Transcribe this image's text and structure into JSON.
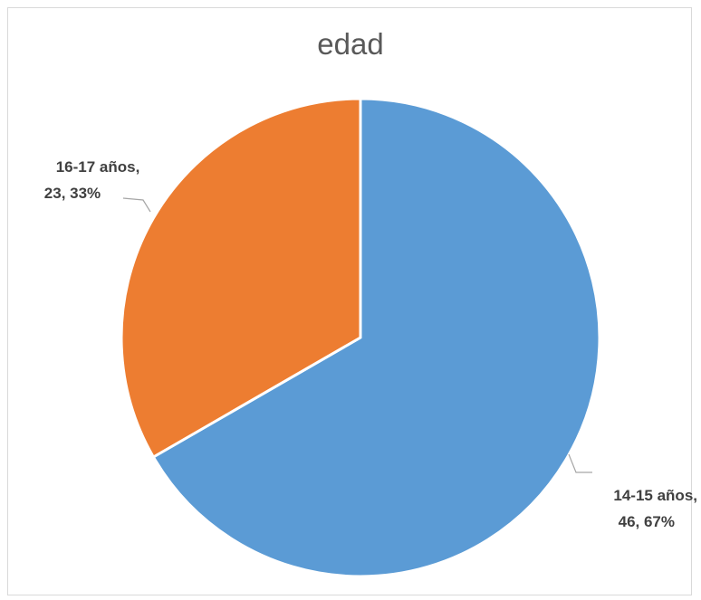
{
  "chart_data": {
    "type": "pie",
    "title": "edad",
    "slices": [
      {
        "label": "14-15 años",
        "value": 46,
        "percent": "67%",
        "label_line1": "14-15 años,",
        "label_line2": "46, 67%",
        "color": "#5B9BD5"
      },
      {
        "label": "16-17 años",
        "value": 23,
        "percent": "33%",
        "label_line1": "16-17 años,",
        "label_line2": "23, 33%",
        "color": "#ED7D31"
      }
    ],
    "legend": "none"
  }
}
